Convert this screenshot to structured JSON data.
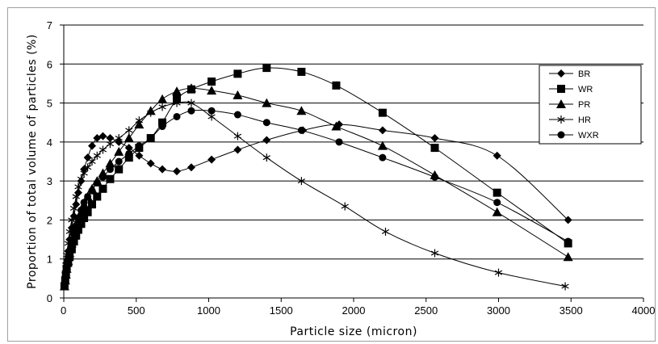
{
  "chart_data": {
    "type": "line",
    "xlabel": "Particle size (micron)",
    "ylabel": "Proportion of total volume of particles (%)",
    "xlim": [
      0,
      4000
    ],
    "ylim": [
      0,
      7
    ],
    "x_ticks": [
      0,
      500,
      1000,
      1500,
      2000,
      2500,
      3000,
      3500,
      4000
    ],
    "y_ticks": [
      0,
      1,
      2,
      3,
      4,
      5,
      6,
      7
    ],
    "grid": "horizontal",
    "legend_position": "right",
    "series": [
      {
        "name": "BR",
        "marker": "diamond",
        "points": [
          [
            5,
            0.3
          ],
          [
            10,
            0.5
          ],
          [
            15,
            0.7
          ],
          [
            20,
            0.9
          ],
          [
            30,
            1.2
          ],
          [
            40,
            1.5
          ],
          [
            55,
            1.8
          ],
          [
            70,
            2.1
          ],
          [
            85,
            2.4
          ],
          [
            100,
            2.7
          ],
          [
            120,
            3.0
          ],
          [
            140,
            3.3
          ],
          [
            165,
            3.6
          ],
          [
            195,
            3.9
          ],
          [
            230,
            4.1
          ],
          [
            270,
            4.15
          ],
          [
            320,
            4.1
          ],
          [
            380,
            4.0
          ],
          [
            450,
            3.85
          ],
          [
            520,
            3.65
          ],
          [
            600,
            3.45
          ],
          [
            680,
            3.3
          ],
          [
            780,
            3.25
          ],
          [
            880,
            3.35
          ],
          [
            1020,
            3.55
          ],
          [
            1200,
            3.8
          ],
          [
            1400,
            4.05
          ],
          [
            1650,
            4.3
          ],
          [
            1900,
            4.45
          ],
          [
            2200,
            4.3
          ],
          [
            2560,
            4.1
          ],
          [
            2990,
            3.65
          ],
          [
            3480,
            2.0
          ]
        ]
      },
      {
        "name": "WR",
        "marker": "square",
        "points": [
          [
            5,
            0.3
          ],
          [
            10,
            0.45
          ],
          [
            15,
            0.6
          ],
          [
            20,
            0.75
          ],
          [
            30,
            0.9
          ],
          [
            40,
            1.05
          ],
          [
            55,
            1.25
          ],
          [
            70,
            1.45
          ],
          [
            85,
            1.6
          ],
          [
            100,
            1.75
          ],
          [
            120,
            1.9
          ],
          [
            140,
            2.05
          ],
          [
            165,
            2.2
          ],
          [
            195,
            2.4
          ],
          [
            230,
            2.6
          ],
          [
            270,
            2.8
          ],
          [
            320,
            3.05
          ],
          [
            380,
            3.3
          ],
          [
            450,
            3.6
          ],
          [
            520,
            3.85
          ],
          [
            600,
            4.1
          ],
          [
            680,
            4.5
          ],
          [
            780,
            5.1
          ],
          [
            880,
            5.35
          ],
          [
            1020,
            5.55
          ],
          [
            1200,
            5.75
          ],
          [
            1400,
            5.9
          ],
          [
            1640,
            5.8
          ],
          [
            1880,
            5.45
          ],
          [
            2200,
            4.75
          ],
          [
            2560,
            3.85
          ],
          [
            2990,
            2.7
          ],
          [
            3480,
            1.4
          ]
        ]
      },
      {
        "name": "PR",
        "marker": "triangle",
        "points": [
          [
            5,
            0.3
          ],
          [
            10,
            0.45
          ],
          [
            15,
            0.6
          ],
          [
            20,
            0.75
          ],
          [
            30,
            0.95
          ],
          [
            40,
            1.15
          ],
          [
            55,
            1.4
          ],
          [
            70,
            1.6
          ],
          [
            85,
            1.8
          ],
          [
            100,
            2.0
          ],
          [
            120,
            2.2
          ],
          [
            140,
            2.4
          ],
          [
            165,
            2.6
          ],
          [
            195,
            2.8
          ],
          [
            230,
            3.0
          ],
          [
            270,
            3.2
          ],
          [
            320,
            3.45
          ],
          [
            380,
            3.75
          ],
          [
            450,
            4.1
          ],
          [
            520,
            4.45
          ],
          [
            600,
            4.8
          ],
          [
            680,
            5.1
          ],
          [
            780,
            5.3
          ],
          [
            880,
            5.38
          ],
          [
            1020,
            5.32
          ],
          [
            1200,
            5.2
          ],
          [
            1400,
            5.0
          ],
          [
            1640,
            4.8
          ],
          [
            1880,
            4.4
          ],
          [
            2200,
            3.9
          ],
          [
            2560,
            3.15
          ],
          [
            2990,
            2.2
          ],
          [
            3480,
            1.05
          ]
        ]
      },
      {
        "name": "HR",
        "marker": "star",
        "points": [
          [
            5,
            0.35
          ],
          [
            10,
            0.6
          ],
          [
            15,
            0.85
          ],
          [
            20,
            1.1
          ],
          [
            30,
            1.4
          ],
          [
            40,
            1.7
          ],
          [
            55,
            2.0
          ],
          [
            70,
            2.3
          ],
          [
            85,
            2.6
          ],
          [
            100,
            2.85
          ],
          [
            120,
            3.05
          ],
          [
            140,
            3.2
          ],
          [
            165,
            3.35
          ],
          [
            195,
            3.5
          ],
          [
            230,
            3.65
          ],
          [
            270,
            3.8
          ],
          [
            320,
            3.95
          ],
          [
            380,
            4.1
          ],
          [
            450,
            4.3
          ],
          [
            520,
            4.55
          ],
          [
            600,
            4.75
          ],
          [
            680,
            4.9
          ],
          [
            780,
            5.0
          ],
          [
            880,
            5.0
          ],
          [
            1020,
            4.65
          ],
          [
            1200,
            4.15
          ],
          [
            1400,
            3.6
          ],
          [
            1640,
            3.0
          ],
          [
            1940,
            2.35
          ],
          [
            2220,
            1.7
          ],
          [
            2560,
            1.15
          ],
          [
            3000,
            0.65
          ],
          [
            3460,
            0.3
          ]
        ]
      },
      {
        "name": "WXR",
        "marker": "circle",
        "points": [
          [
            5,
            0.3
          ],
          [
            10,
            0.5
          ],
          [
            15,
            0.65
          ],
          [
            20,
            0.8
          ],
          [
            30,
            1.0
          ],
          [
            40,
            1.2
          ],
          [
            55,
            1.4
          ],
          [
            70,
            1.65
          ],
          [
            85,
            1.85
          ],
          [
            100,
            2.05
          ],
          [
            120,
            2.25
          ],
          [
            140,
            2.45
          ],
          [
            165,
            2.6
          ],
          [
            195,
            2.75
          ],
          [
            230,
            2.95
          ],
          [
            270,
            3.1
          ],
          [
            320,
            3.3
          ],
          [
            380,
            3.5
          ],
          [
            450,
            3.7
          ],
          [
            520,
            3.9
          ],
          [
            600,
            4.1
          ],
          [
            680,
            4.4
          ],
          [
            780,
            4.65
          ],
          [
            880,
            4.8
          ],
          [
            1020,
            4.8
          ],
          [
            1200,
            4.7
          ],
          [
            1400,
            4.5
          ],
          [
            1640,
            4.3
          ],
          [
            1900,
            4.0
          ],
          [
            2200,
            3.6
          ],
          [
            2560,
            3.1
          ],
          [
            2990,
            2.45
          ],
          [
            3480,
            1.45
          ]
        ]
      }
    ]
  }
}
